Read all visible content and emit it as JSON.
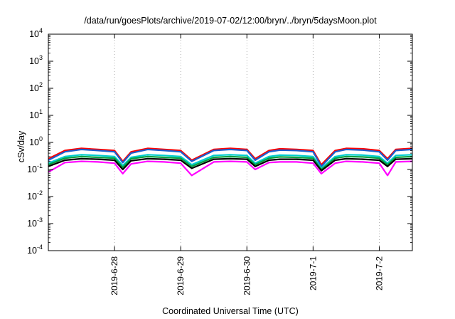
{
  "chart_data": {
    "type": "line",
    "title": "/data/run/goesPlots/archive/2019-07-02/12:00/bryn/../bryn/5daysMoon.plot",
    "xlabel": "Coordinated Universal Time (UTC)",
    "ylabel": "cSv/day",
    "yscale": "log",
    "ylim": [
      0.0001,
      10000
    ],
    "xlim": [
      "2019-06-27T00:00",
      "2019-07-02T12:00"
    ],
    "x_ticks": [
      "2019-6-28",
      "2019-6-29",
      "2019-6-30",
      "2019-7-1",
      "2019-7-2"
    ],
    "y_ticks": [
      {
        "base": "10",
        "exp": "-4"
      },
      {
        "base": "10",
        "exp": "-3"
      },
      {
        "base": "10",
        "exp": "-2"
      },
      {
        "base": "10",
        "exp": "-1"
      },
      {
        "base": "10",
        "exp": "0"
      },
      {
        "base": "10",
        "exp": "1"
      },
      {
        "base": "10",
        "exp": "2"
      },
      {
        "base": "10",
        "exp": "3"
      },
      {
        "base": "10",
        "exp": "4"
      }
    ],
    "grid": "x-dotted",
    "legend": "none",
    "x": [
      "2019-06-27T00:00",
      "2019-06-27T06:00",
      "2019-06-27T12:00",
      "2019-06-27T18:00",
      "2019-06-28T00:00",
      "2019-06-28T03:00",
      "2019-06-28T06:00",
      "2019-06-28T12:00",
      "2019-06-28T18:00",
      "2019-06-29T00:00",
      "2019-06-29T04:00",
      "2019-06-29T12:00",
      "2019-06-29T18:00",
      "2019-06-30T00:00",
      "2019-06-30T03:00",
      "2019-06-30T08:00",
      "2019-06-30T12:00",
      "2019-06-30T18:00",
      "2019-07-01T00:00",
      "2019-07-01T03:00",
      "2019-07-01T08:00",
      "2019-07-01T12:00",
      "2019-07-01T18:00",
      "2019-07-02T00:00",
      "2019-07-02T03:00",
      "2019-07-02T06:00",
      "2019-07-02T12:00"
    ],
    "series": [
      {
        "color": "#ff0000",
        "values": [
          0.25,
          0.5,
          0.6,
          0.55,
          0.5,
          0.2,
          0.45,
          0.6,
          0.55,
          0.5,
          0.22,
          0.55,
          0.6,
          0.55,
          0.25,
          0.5,
          0.58,
          0.55,
          0.5,
          0.15,
          0.5,
          0.6,
          0.58,
          0.5,
          0.25,
          0.55,
          0.6
        ]
      },
      {
        "color": "#1a5fd0",
        "values": [
          0.22,
          0.45,
          0.55,
          0.5,
          0.45,
          0.18,
          0.4,
          0.55,
          0.5,
          0.45,
          0.2,
          0.5,
          0.55,
          0.5,
          0.22,
          0.45,
          0.52,
          0.5,
          0.45,
          0.13,
          0.45,
          0.55,
          0.52,
          0.45,
          0.22,
          0.5,
          0.55
        ]
      },
      {
        "color": "#00cccc",
        "values": [
          0.17,
          0.3,
          0.35,
          0.33,
          0.3,
          0.14,
          0.28,
          0.35,
          0.33,
          0.3,
          0.15,
          0.33,
          0.35,
          0.33,
          0.17,
          0.3,
          0.34,
          0.33,
          0.3,
          0.11,
          0.3,
          0.35,
          0.34,
          0.3,
          0.17,
          0.33,
          0.35
        ]
      },
      {
        "color": "#00a040",
        "values": [
          0.15,
          0.26,
          0.3,
          0.28,
          0.26,
          0.12,
          0.25,
          0.3,
          0.28,
          0.26,
          0.13,
          0.28,
          0.3,
          0.28,
          0.15,
          0.26,
          0.29,
          0.28,
          0.26,
          0.1,
          0.26,
          0.3,
          0.29,
          0.26,
          0.15,
          0.28,
          0.3
        ]
      },
      {
        "color": "#000000",
        "values": [
          0.13,
          0.22,
          0.25,
          0.24,
          0.22,
          0.1,
          0.21,
          0.25,
          0.24,
          0.22,
          0.11,
          0.24,
          0.25,
          0.24,
          0.13,
          0.22,
          0.24,
          0.24,
          0.22,
          0.09,
          0.22,
          0.25,
          0.24,
          0.22,
          0.13,
          0.24,
          0.25
        ]
      },
      {
        "color": "#ff00ff",
        "values": [
          0.08,
          0.18,
          0.2,
          0.19,
          0.17,
          0.07,
          0.16,
          0.2,
          0.19,
          0.17,
          0.06,
          0.19,
          0.2,
          0.19,
          0.1,
          0.18,
          0.19,
          0.19,
          0.17,
          0.07,
          0.17,
          0.2,
          0.19,
          0.17,
          0.06,
          0.19,
          0.2
        ]
      }
    ]
  }
}
